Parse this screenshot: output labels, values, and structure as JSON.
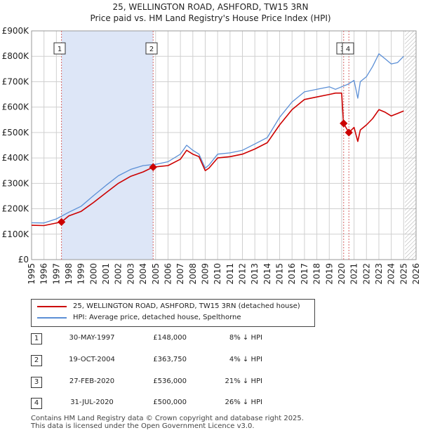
{
  "title_line1": "25, WELLINGTON ROAD, ASHFORD, TW15 3RN",
  "title_line2": "Price paid vs. HM Land Registry's House Price Index (HPI)",
  "colors": {
    "property": "#cc0000",
    "hpi": "#5b8fd6",
    "shade": "#dde6f7",
    "grid": "#d0d0d0",
    "marker_line": "#d66666"
  },
  "chart_data": {
    "type": "line",
    "ylim": [
      0,
      900000
    ],
    "xlim": [
      1995,
      2026
    ],
    "y_ticks": [
      0,
      100000,
      200000,
      300000,
      400000,
      500000,
      600000,
      700000,
      800000,
      900000
    ],
    "y_tick_labels": [
      "£0",
      "£100K",
      "£200K",
      "£300K",
      "£400K",
      "£500K",
      "£600K",
      "£700K",
      "£800K",
      "£900K"
    ],
    "x_ticks": [
      1995,
      1996,
      1997,
      1998,
      1999,
      2000,
      2001,
      2002,
      2003,
      2004,
      2005,
      2006,
      2007,
      2008,
      2009,
      2010,
      2011,
      2012,
      2013,
      2014,
      2015,
      2016,
      2017,
      2018,
      2019,
      2020,
      2021,
      2022,
      2023,
      2024,
      2025,
      2026
    ],
    "shaded_ranges": [
      [
        1997.41,
        2004.8
      ]
    ],
    "hatched_from": 2025.1,
    "series": [
      {
        "name": "25, WELLINGTON ROAD, ASHFORD, TW15 3RN (detached house)",
        "x": [
          1995,
          1996,
          1997.41,
          1998,
          1999,
          2000,
          2001,
          2002,
          2003,
          2004,
          2004.8,
          2005,
          2006,
          2007,
          2007.5,
          2008,
          2008.5,
          2009,
          2009.3,
          2010,
          2011,
          2012,
          2013,
          2014,
          2015,
          2016,
          2017,
          2018,
          2019,
          2019.5,
          2020.0,
          2020.15,
          2020.58,
          2021,
          2021.3,
          2021.5,
          2022,
          2022.5,
          2023,
          2023.5,
          2024,
          2024.5,
          2025
        ],
        "values": [
          135000,
          134000,
          148000,
          172000,
          190000,
          225000,
          263000,
          300000,
          328000,
          345000,
          363750,
          365000,
          370000,
          395000,
          430000,
          415000,
          405000,
          350000,
          360000,
          400000,
          405000,
          415000,
          435000,
          460000,
          530000,
          590000,
          630000,
          640000,
          650000,
          655000,
          655000,
          536000,
          500000,
          520000,
          465000,
          510000,
          530000,
          555000,
          590000,
          580000,
          565000,
          575000,
          585000
        ]
      },
      {
        "name": "HPI: Average price, detached house, Spelthorne",
        "x": [
          1995,
          1996,
          1997,
          1998,
          1999,
          2000,
          2001,
          2002,
          2003,
          2004,
          2005,
          2006,
          2007,
          2007.5,
          2008,
          2008.5,
          2009,
          2009.3,
          2010,
          2011,
          2012,
          2013,
          2014,
          2015,
          2016,
          2017,
          2018,
          2019,
          2019.5,
          2020.0,
          2020.5,
          2021,
          2021.3,
          2021.5,
          2022,
          2022.5,
          2023,
          2023.5,
          2024,
          2024.5,
          2025
        ],
        "values": [
          145000,
          144000,
          160000,
          186000,
          210000,
          252000,
          292000,
          330000,
          355000,
          370000,
          375000,
          385000,
          415000,
          450000,
          430000,
          415000,
          360000,
          372000,
          415000,
          420000,
          430000,
          455000,
          480000,
          560000,
          620000,
          660000,
          670000,
          680000,
          670000,
          680000,
          690000,
          705000,
          635000,
          700000,
          720000,
          760000,
          810000,
          790000,
          770000,
          775000,
          800000
        ]
      }
    ],
    "sales": [
      {
        "label": "1",
        "x": 1997.41,
        "value": 148000
      },
      {
        "label": "2",
        "x": 2004.8,
        "value": 363750
      },
      {
        "label": "3",
        "x": 2020.16,
        "value": 536000
      },
      {
        "label": "4",
        "x": 2020.58,
        "value": 500000
      }
    ]
  },
  "legend": {
    "property_label": "25, WELLINGTON ROAD, ASHFORD, TW15 3RN (detached house)",
    "hpi_label": "HPI: Average price, detached house, Spelthorne"
  },
  "sales_table": [
    {
      "num": "1",
      "date": "30-MAY-1997",
      "price": "£148,000",
      "hpi": "8% ↓ HPI"
    },
    {
      "num": "2",
      "date": "19-OCT-2004",
      "price": "£363,750",
      "hpi": "4% ↓ HPI"
    },
    {
      "num": "3",
      "date": "27-FEB-2020",
      "price": "£536,000",
      "hpi": "21% ↓ HPI"
    },
    {
      "num": "4",
      "date": "31-JUL-2020",
      "price": "£500,000",
      "hpi": "26% ↓ HPI"
    }
  ],
  "footer": {
    "line1": "Contains HM Land Registry data © Crown copyright and database right 2025.",
    "line2": "This data is licensed under the Open Government Licence v3.0."
  }
}
